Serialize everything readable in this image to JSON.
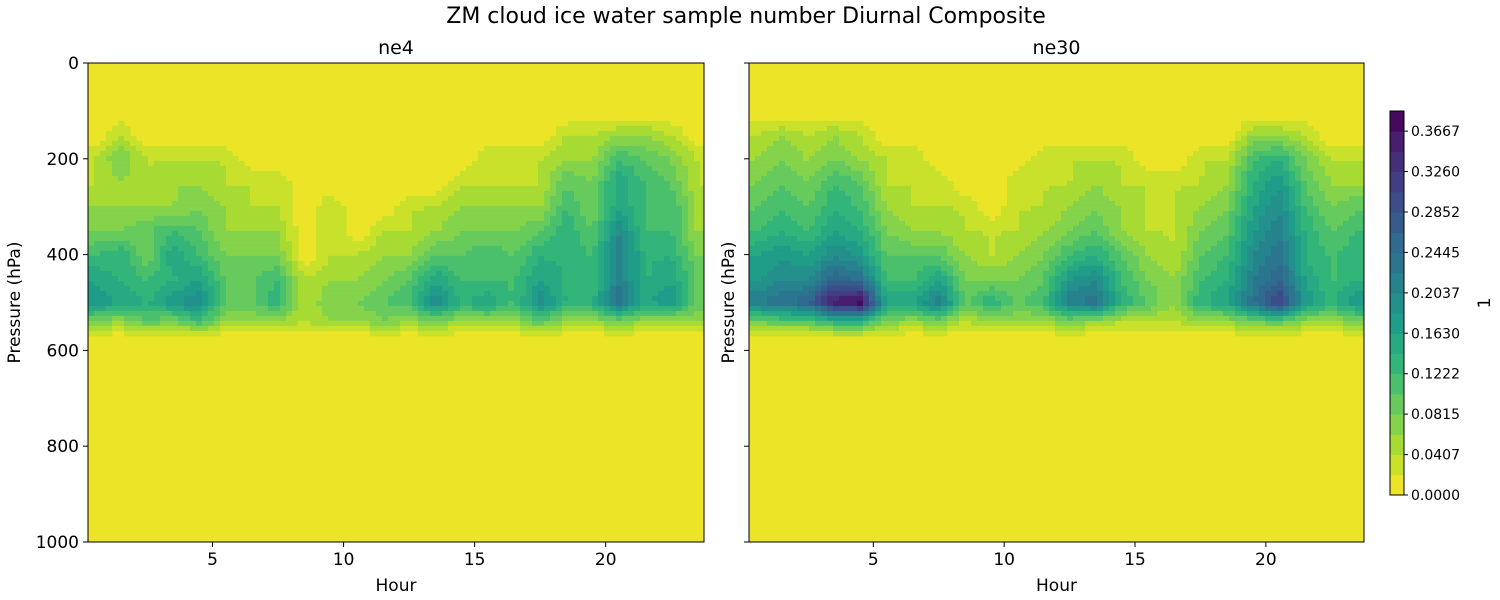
{
  "chart_data": {
    "type": "heatmap",
    "subtype": "filled-contour",
    "title": "ZM cloud ice water sample number Diurnal Composite",
    "colorbar": {
      "label": "1",
      "range": [
        0.0,
        0.387
      ],
      "level_step": 0.02037,
      "ticks": [
        "0.0000",
        "0.0407",
        "0.0815",
        "0.1222",
        "0.1630",
        "0.2037",
        "0.2445",
        "0.2852",
        "0.3260",
        "0.3667"
      ],
      "tick_values": [
        0.0,
        0.0407,
        0.0815,
        0.1222,
        0.163,
        0.2037,
        0.2445,
        0.2852,
        0.326,
        0.3667
      ],
      "colormap": "viridis_r"
    },
    "xlabel": "Hour",
    "ylabel": "Pressure (hPa)",
    "xlim": [
      0.25,
      23.75
    ],
    "ylim": [
      1000,
      0
    ],
    "xticks": [
      5,
      10,
      15,
      20
    ],
    "yticks": [
      0,
      200,
      400,
      600,
      800,
      1000
    ],
    "hours": [
      0.5,
      1.5,
      2.5,
      3.5,
      4.5,
      5.5,
      6.5,
      7.5,
      8.5,
      9.5,
      10.5,
      11.5,
      12.5,
      13.5,
      14.5,
      15.5,
      16.5,
      17.5,
      18.5,
      19.5,
      20.5,
      21.5,
      22.5,
      23.5
    ],
    "levels_hPa": [
      150,
      200,
      250,
      300,
      350,
      400,
      450,
      500,
      540,
      575
    ],
    "panels": [
      {
        "title": "ne4",
        "z_by_hour": [
          [
            0,
            0.04,
            0.04,
            0.06,
            0.08,
            0.12,
            0.16,
            0.18,
            0.08,
            0
          ],
          [
            0.04,
            0.08,
            0.06,
            0.06,
            0.08,
            0.14,
            0.14,
            0.16,
            0.06,
            0
          ],
          [
            0,
            0.04,
            0.04,
            0.06,
            0.1,
            0.08,
            0.12,
            0.14,
            0.1,
            0
          ],
          [
            0,
            0.04,
            0.06,
            0.06,
            0.12,
            0.16,
            0.14,
            0.18,
            0.08,
            0
          ],
          [
            0,
            0.04,
            0.06,
            0.08,
            0.1,
            0.12,
            0.16,
            0.2,
            0.12,
            0
          ],
          [
            0,
            0.04,
            0.04,
            0.06,
            0.06,
            0.08,
            0.1,
            0.1,
            0.06,
            0
          ],
          [
            0,
            0,
            0.04,
            0.04,
            0.06,
            0.08,
            0.1,
            0.1,
            0.06,
            0
          ],
          [
            0,
            0,
            0.04,
            0.04,
            0.06,
            0.08,
            0.12,
            0.14,
            0.06,
            0
          ],
          [
            0,
            0,
            0,
            0,
            0,
            0,
            0.04,
            0.04,
            0.04,
            0
          ],
          [
            0,
            0,
            0,
            0.04,
            0.04,
            0.04,
            0.06,
            0.08,
            0.06,
            0
          ],
          [
            0,
            0,
            0,
            0,
            0,
            0.04,
            0.06,
            0.08,
            0.06,
            0
          ],
          [
            0,
            0,
            0,
            0,
            0.04,
            0.06,
            0.08,
            0.1,
            0.08,
            0
          ],
          [
            0,
            0,
            0,
            0.04,
            0.04,
            0.06,
            0.1,
            0.12,
            0.06,
            0
          ],
          [
            0,
            0,
            0,
            0.04,
            0.06,
            0.1,
            0.16,
            0.2,
            0.08,
            0
          ],
          [
            0,
            0,
            0.04,
            0.06,
            0.08,
            0.1,
            0.12,
            0.14,
            0.06,
            0
          ],
          [
            0,
            0.04,
            0.04,
            0.06,
            0.08,
            0.12,
            0.12,
            0.16,
            0.06,
            0
          ],
          [
            0,
            0.04,
            0.04,
            0.06,
            0.08,
            0.1,
            0.12,
            0.12,
            0.06,
            0
          ],
          [
            0,
            0.04,
            0.04,
            0.06,
            0.1,
            0.14,
            0.16,
            0.2,
            0.1,
            0
          ],
          [
            0.04,
            0.06,
            0.1,
            0.12,
            0.14,
            0.14,
            0.14,
            0.14,
            0.06,
            0
          ],
          [
            0.04,
            0.06,
            0.08,
            0.08,
            0.1,
            0.12,
            0.12,
            0.14,
            0.06,
            0
          ],
          [
            0.06,
            0.12,
            0.16,
            0.16,
            0.2,
            0.22,
            0.22,
            0.24,
            0.08,
            0
          ],
          [
            0.06,
            0.1,
            0.12,
            0.12,
            0.12,
            0.14,
            0.14,
            0.16,
            0.06,
            0
          ],
          [
            0.04,
            0.08,
            0.1,
            0.12,
            0.12,
            0.14,
            0.16,
            0.18,
            0.06,
            0
          ],
          [
            0,
            0.04,
            0.04,
            0.06,
            0.06,
            0.08,
            0.1,
            0.1,
            0.06,
            0
          ]
        ]
      },
      {
        "title": "ne30",
        "z_by_hour": [
          [
            0.04,
            0.06,
            0.08,
            0.1,
            0.12,
            0.16,
            0.18,
            0.22,
            0.08,
            0
          ],
          [
            0.06,
            0.08,
            0.1,
            0.12,
            0.14,
            0.18,
            0.2,
            0.24,
            0.1,
            0
          ],
          [
            0.04,
            0.06,
            0.08,
            0.1,
            0.12,
            0.16,
            0.2,
            0.26,
            0.1,
            0
          ],
          [
            0.06,
            0.08,
            0.12,
            0.14,
            0.16,
            0.2,
            0.26,
            0.36,
            0.14,
            0
          ],
          [
            0.04,
            0.06,
            0.1,
            0.12,
            0.14,
            0.18,
            0.24,
            0.38,
            0.14,
            0
          ],
          [
            0,
            0.04,
            0.04,
            0.06,
            0.08,
            0.1,
            0.12,
            0.16,
            0.08,
            0
          ],
          [
            0,
            0.04,
            0.04,
            0.04,
            0.06,
            0.1,
            0.12,
            0.16,
            0.06,
            0
          ],
          [
            0,
            0,
            0.04,
            0.04,
            0.06,
            0.1,
            0.16,
            0.22,
            0.08,
            0
          ],
          [
            0,
            0,
            0,
            0.04,
            0.04,
            0.06,
            0.08,
            0.1,
            0.04,
            0
          ],
          [
            0,
            0,
            0,
            0,
            0.04,
            0.04,
            0.08,
            0.14,
            0.06,
            0
          ],
          [
            0,
            0,
            0.04,
            0.04,
            0.04,
            0.06,
            0.08,
            0.1,
            0.06,
            0
          ],
          [
            0,
            0.04,
            0.04,
            0.04,
            0.06,
            0.08,
            0.1,
            0.12,
            0.06,
            0
          ],
          [
            0,
            0.04,
            0.04,
            0.06,
            0.08,
            0.12,
            0.18,
            0.22,
            0.08,
            0
          ],
          [
            0,
            0.04,
            0.06,
            0.08,
            0.1,
            0.14,
            0.2,
            0.24,
            0.06,
            0
          ],
          [
            0,
            0.04,
            0.04,
            0.06,
            0.06,
            0.1,
            0.12,
            0.14,
            0.04,
            0
          ],
          [
            0,
            0,
            0.04,
            0.04,
            0.04,
            0.06,
            0.08,
            0.1,
            0.04,
            0
          ],
          [
            0,
            0,
            0.04,
            0.04,
            0.04,
            0.04,
            0.06,
            0.06,
            0.04,
            0
          ],
          [
            0,
            0.04,
            0.04,
            0.06,
            0.08,
            0.1,
            0.12,
            0.14,
            0.06,
            0
          ],
          [
            0,
            0.04,
            0.06,
            0.08,
            0.1,
            0.12,
            0.14,
            0.16,
            0.06,
            0
          ],
          [
            0.06,
            0.12,
            0.14,
            0.16,
            0.18,
            0.2,
            0.22,
            0.24,
            0.08,
            0
          ],
          [
            0.06,
            0.14,
            0.18,
            0.2,
            0.22,
            0.24,
            0.26,
            0.32,
            0.1,
            0
          ],
          [
            0.04,
            0.08,
            0.1,
            0.12,
            0.14,
            0.14,
            0.16,
            0.18,
            0.06,
            0
          ],
          [
            0,
            0.04,
            0.06,
            0.08,
            0.1,
            0.12,
            0.12,
            0.14,
            0.06,
            0
          ],
          [
            0,
            0.04,
            0.06,
            0.1,
            0.12,
            0.14,
            0.14,
            0.18,
            0.08,
            0
          ]
        ]
      }
    ]
  }
}
